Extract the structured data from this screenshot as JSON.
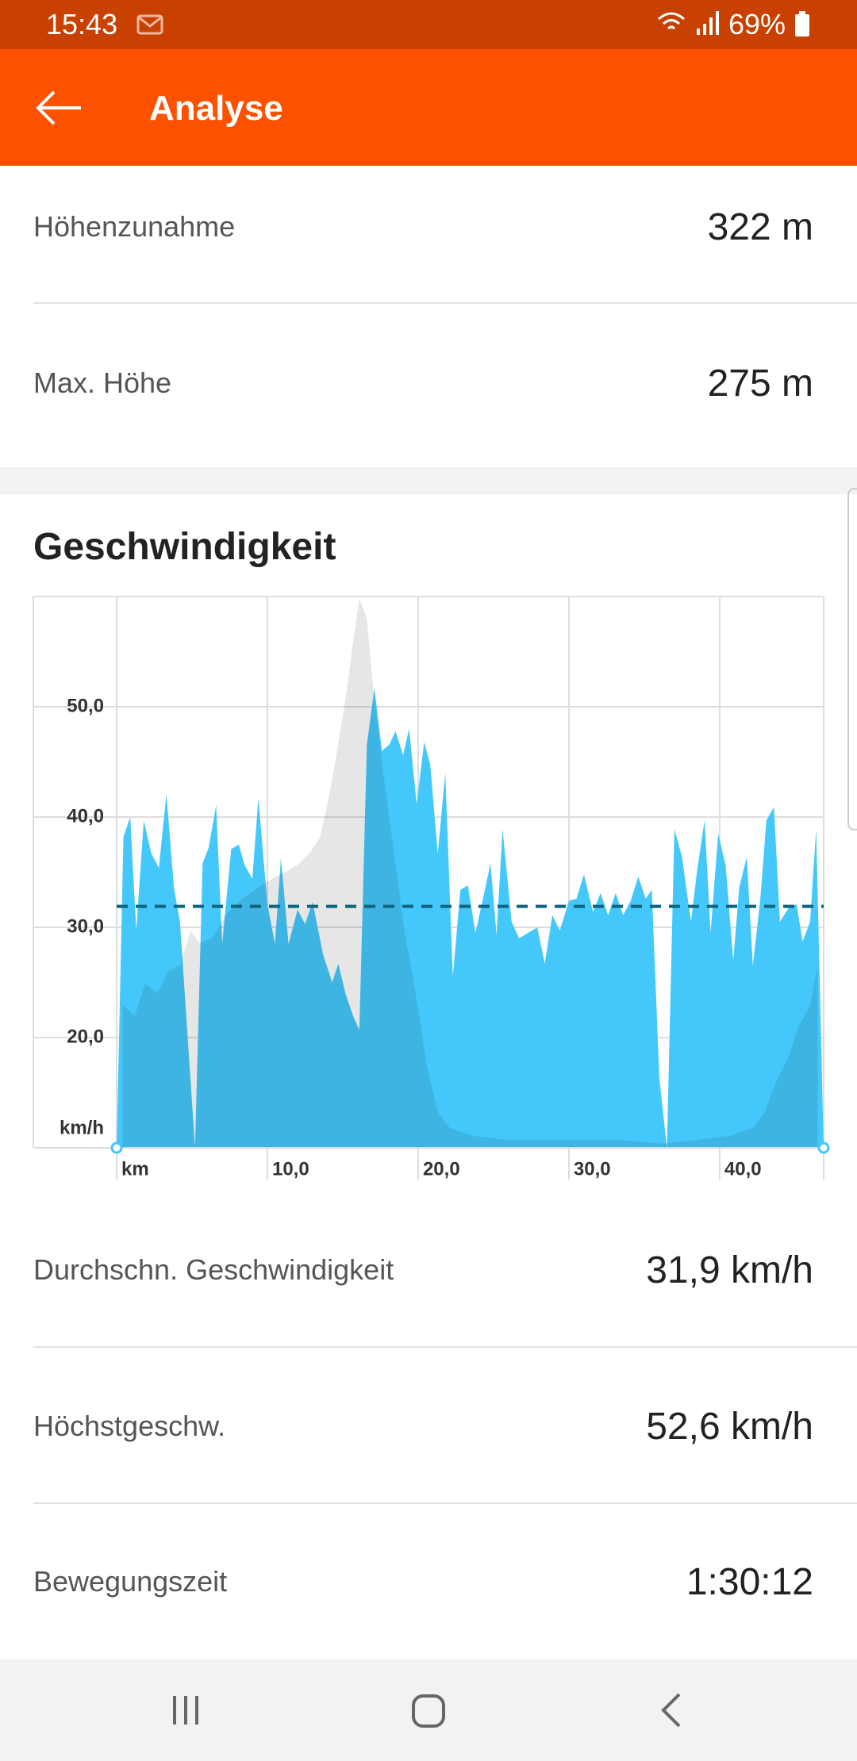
{
  "status_bar": {
    "time": "15:43",
    "battery": "69%"
  },
  "app_bar": {
    "title": "Analyse"
  },
  "rows_top": [
    {
      "label": "Höhenzunahme",
      "value": "322 m"
    },
    {
      "label": "Max. Höhe",
      "value": "275 m"
    }
  ],
  "section": {
    "title": "Geschwindigkeit"
  },
  "chart_data": {
    "type": "area",
    "xlim": [
      0,
      46.9
    ],
    "ylim": [
      10,
      60
    ],
    "y2lim": [
      0,
      275
    ],
    "xticks": [
      {
        "value": 0,
        "label": "km"
      },
      {
        "value": 10,
        "label": "10,0"
      },
      {
        "value": 20,
        "label": "20,0"
      },
      {
        "value": 30,
        "label": "30,0"
      },
      {
        "value": 40,
        "label": "40,0"
      }
    ],
    "yticks": [
      {
        "value": 10,
        "label": "km/h"
      },
      {
        "value": 20,
        "label": "20,0"
      },
      {
        "value": 30,
        "label": "30,0"
      },
      {
        "value": 40,
        "label": "40,0"
      },
      {
        "value": 50,
        "label": "50,0"
      }
    ],
    "grid": true,
    "average": 31.9,
    "average_color": "#0e6580",
    "series": [
      {
        "color": "#44c8fb",
        "x": [
          0,
          0.45,
          0.9,
          1.3,
          1.8,
          2.3,
          2.8,
          3.3,
          3.8,
          4.2,
          5.2,
          5.7,
          6.1,
          6.6,
          7.0,
          7.6,
          8.1,
          8.5,
          9.0,
          9.4,
          10.0,
          10.5,
          10.9,
          11.4,
          12.0,
          12.5,
          13.0,
          13.7,
          14.3,
          14.7,
          15.2,
          15.7,
          16.1,
          16.6,
          17.1,
          17.6,
          18.1,
          18.5,
          19.0,
          19.4,
          19.9,
          20.4,
          20.8,
          21.3,
          21.8,
          22.3,
          22.8,
          23.3,
          23.8,
          24.3,
          24.8,
          25.2,
          25.6,
          26.2,
          26.7,
          27.3,
          27.9,
          28.4,
          28.9,
          29.4,
          30.0,
          30.5,
          31.0,
          31.6,
          32.1,
          32.6,
          33.1,
          33.6,
          34.1,
          34.6,
          35.1,
          35.5,
          36.0,
          36.5,
          37.0,
          37.5,
          38.1,
          38.5,
          39.0,
          39.4,
          39.9,
          40.4,
          40.9,
          41.3,
          41.8,
          42.2,
          42.7,
          43.1,
          43.6,
          44.0,
          44.6,
          45.1,
          45.5,
          46.0,
          46.4,
          46.9
        ],
        "values": [
          10.0,
          38.2,
          40.0,
          29.7,
          39.7,
          36.7,
          35.4,
          42.1,
          33.6,
          30.5,
          10.0,
          35.8,
          37.2,
          41.1,
          28.5,
          37.1,
          37.5,
          35.6,
          34.4,
          41.7,
          32.1,
          28.5,
          36.3,
          28.5,
          31.6,
          30.3,
          32.3,
          27.5,
          25.0,
          26.7,
          23.9,
          21.9,
          20.7,
          46.6,
          51.7,
          46.0,
          46.6,
          47.8,
          45.6,
          48.0,
          41.2,
          46.8,
          44.8,
          36.7,
          44.0,
          25.5,
          33.4,
          33.8,
          29.5,
          32.6,
          35.8,
          29.3,
          38.9,
          30.5,
          29.0,
          29.5,
          30.0,
          26.7,
          31.1,
          29.7,
          32.4,
          32.6,
          34.8,
          31.4,
          33.1,
          31.1,
          33.1,
          31.1,
          32.4,
          34.6,
          32.6,
          33.4,
          16.3,
          10.0,
          38.9,
          36.4,
          30.5,
          35.1,
          39.7,
          29.5,
          38.5,
          35.6,
          27.0,
          33.6,
          36.4,
          26.5,
          32.6,
          39.7,
          40.9,
          30.5,
          31.8,
          32.1,
          28.7,
          30.5,
          38.9,
          10.0
        ]
      },
      {
        "color": "#e6e6e6",
        "axis": "y2",
        "x": [
          0.4,
          1.2,
          1.9,
          2.7,
          3.4,
          4.2,
          4.9,
          5.5,
          6.4,
          7.2,
          8.3,
          9.4,
          10.5,
          11.3,
          12.0,
          12.8,
          13.5,
          14.0,
          14.6,
          15.2,
          15.7,
          16.1,
          16.6,
          17.0,
          17.6,
          18.4,
          19.1,
          19.9,
          20.6,
          21.3,
          22.1,
          23.6,
          25.8,
          29.6,
          33.3,
          36.3,
          38.5,
          40.7,
          42.2,
          43.0,
          43.7,
          44.6,
          45.2,
          46.0,
          46.5
        ],
        "values": [
          71,
          66,
          82,
          77,
          88,
          91,
          108,
          102,
          105,
          116,
          124,
          130,
          135,
          138,
          141,
          147,
          155,
          172,
          197,
          225,
          253,
          274,
          264,
          231,
          192,
          147,
          108,
          74,
          40,
          18,
          10,
          6,
          4,
          4,
          4,
          2,
          4,
          6,
          10,
          18,
          32,
          46,
          60,
          71,
          91
        ]
      }
    ]
  },
  "rows_bottom": [
    {
      "label": "Durchschn. Geschwindigkeit",
      "value": "31,9 km/h"
    },
    {
      "label": "Höchstgeschw.",
      "value": "52,6 km/h"
    },
    {
      "label": "Bewegungszeit",
      "value": "1:30:12"
    }
  ]
}
